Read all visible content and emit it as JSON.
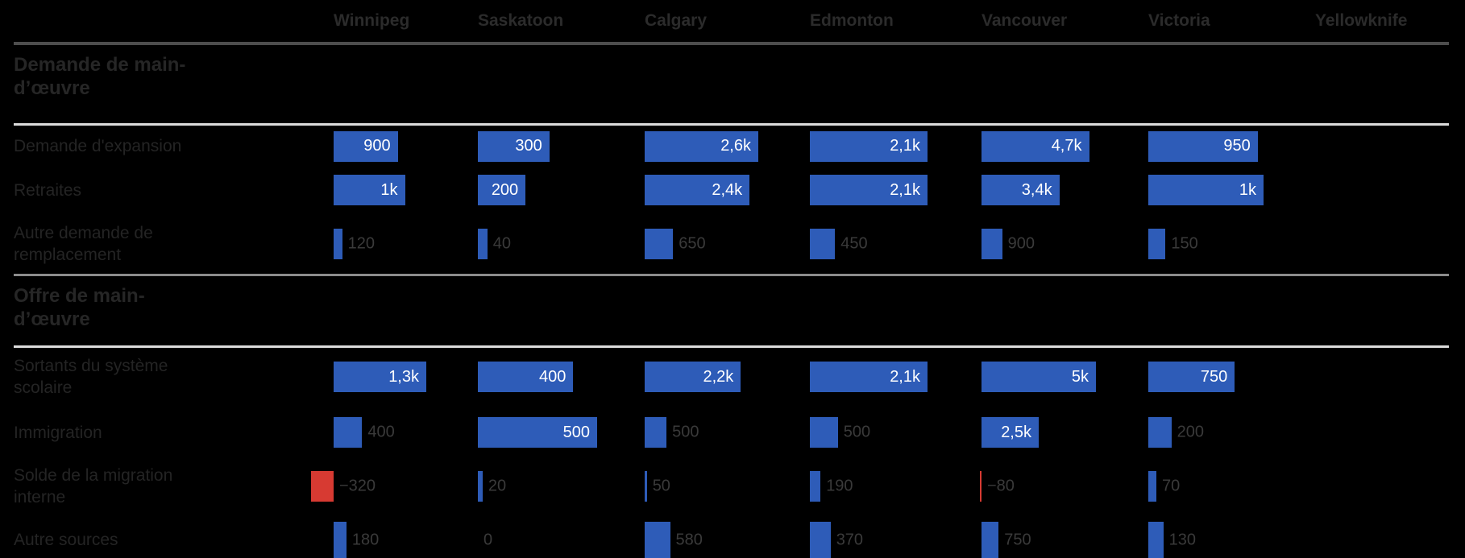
{
  "chart_data": {
    "type": "bar",
    "orientation": "horizontal",
    "value_scaling": "per-column-max",
    "legend": false,
    "gridlines": false,
    "columns": [
      "Winnipeg",
      "Saskatoon",
      "Calgary",
      "Edmonton",
      "Vancouver",
      "Victoria",
      "Yellowknife"
    ],
    "sections": [
      {
        "title": "Demande de main-d’œuvre",
        "title_lines": [
          "Demande de main-",
          "d’œuvre"
        ],
        "rows": [
          {
            "label": "Demande d'expansion",
            "label_lines": [
              "Demande d'expansion"
            ],
            "values": [
              900,
              300,
              2600,
              2100,
              4700,
              950,
              null
            ],
            "value_labels": [
              "900",
              "300",
              "2,6k",
              "2,1k",
              "4,7k",
              "950",
              ""
            ]
          },
          {
            "label": "Retraites",
            "label_lines": [
              "Retraites"
            ],
            "values": [
              1000,
              200,
              2400,
              2100,
              3400,
              1000,
              null
            ],
            "value_labels": [
              "1k",
              "200",
              "2,4k",
              "2,1k",
              "3,4k",
              "1k",
              ""
            ]
          },
          {
            "label": "Autre demande de remplacement",
            "label_lines": [
              "Autre demande de",
              "remplacement"
            ],
            "values": [
              120,
              40,
              650,
              450,
              900,
              150,
              null
            ],
            "value_labels": [
              "120",
              "40",
              "650",
              "450",
              "900",
              "150",
              ""
            ]
          }
        ]
      },
      {
        "title": "Offre de main-d’œuvre",
        "title_lines": [
          "Offre de main-",
          "d’œuvre"
        ],
        "rows": [
          {
            "label": "Sortants du système scolaire",
            "label_lines": [
              "Sortants du système",
              "scolaire"
            ],
            "values": [
              1300,
              400,
              2200,
              2100,
              5000,
              750,
              null
            ],
            "value_labels": [
              "1,3k",
              "400",
              "2,2k",
              "2,1k",
              "5k",
              "750",
              ""
            ]
          },
          {
            "label": "Immigration",
            "label_lines": [
              "Immigration"
            ],
            "values": [
              400,
              500,
              500,
              500,
              2500,
              200,
              null
            ],
            "value_labels": [
              "400",
              "500",
              "500",
              "500",
              "2,5k",
              "200",
              ""
            ]
          },
          {
            "label": "Solde de la migration interne",
            "label_lines": [
              "Solde de la migration",
              "interne"
            ],
            "values": [
              -320,
              20,
              50,
              190,
              -80,
              70,
              null
            ],
            "value_labels": [
              "−320",
              "20",
              "50",
              "190",
              "−80",
              "70",
              ""
            ]
          },
          {
            "label": "Autre sources",
            "label_lines": [
              "Autre sources"
            ],
            "values": [
              180,
              0,
              580,
              370,
              750,
              130,
              null
            ],
            "value_labels": [
              "180",
              "0",
              "580",
              "370",
              "750",
              "130",
              ""
            ]
          }
        ]
      }
    ],
    "colors": {
      "background": "#000000",
      "bar_positive": "#2e5cb8",
      "bar_negative": "#d73a32",
      "label_inside": "#ffffff",
      "label_outside": "#3a3a3a",
      "row_label": "#242424",
      "city_label": "#2b2b2b",
      "section_title": "#262626",
      "header_rule": "#4d4d4d",
      "section_rule": "#8c8c8c",
      "title_rule": "#dcdcdc"
    }
  }
}
